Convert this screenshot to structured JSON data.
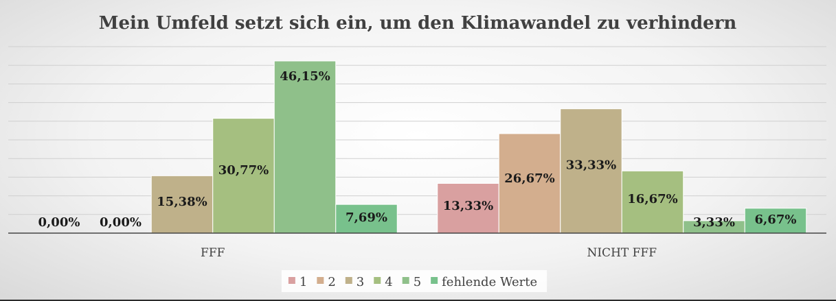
{
  "chart_data": {
    "type": "bar",
    "title": "Mein Umfeld setzt sich ein, um den Klimawandel zu verhindern",
    "categories": [
      "FFF",
      "NICHT FFF"
    ],
    "series": [
      {
        "name": "1",
        "values": [
          0.0,
          13.33
        ],
        "labels": [
          "0,00%",
          "13,33%"
        ],
        "color": "#d9a0a0"
      },
      {
        "name": "2",
        "values": [
          0.0,
          26.67
        ],
        "labels": [
          "0,00%",
          "26,67%"
        ],
        "color": "#d3ae8e"
      },
      {
        "name": "3",
        "values": [
          15.38,
          33.33
        ],
        "labels": [
          "15,38%",
          "33,33%"
        ],
        "color": "#bfb18a"
      },
      {
        "name": "4",
        "values": [
          30.77,
          16.67
        ],
        "labels": [
          "30,77%",
          "16,67%"
        ],
        "color": "#a5bf80"
      },
      {
        "name": "5",
        "values": [
          46.15,
          3.33
        ],
        "labels": [
          "46,15%",
          "3,33%"
        ],
        "color": "#8fc08a"
      },
      {
        "name": "fehlende Werte",
        "values": [
          7.69,
          6.67
        ],
        "labels": [
          "7,69%",
          "6,67%"
        ],
        "color": "#78c18c"
      }
    ],
    "ylim": [
      0,
      50
    ],
    "grid": true,
    "legend": "bottom"
  }
}
